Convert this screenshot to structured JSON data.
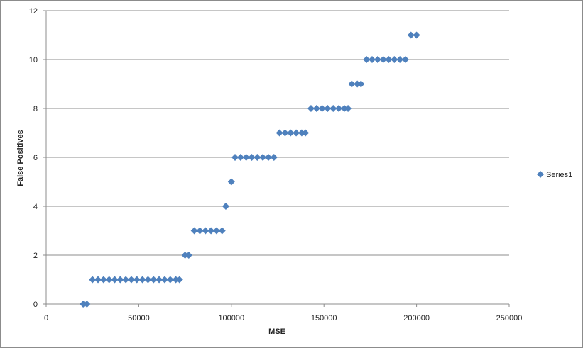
{
  "chart_data": {
    "type": "scatter",
    "title": "",
    "xlabel": "MSE",
    "ylabel": "False Positives",
    "xlim": [
      0,
      250000
    ],
    "ylim": [
      0,
      12
    ],
    "xticks": [
      "0",
      "50000",
      "100000",
      "150000",
      "200000",
      "250000"
    ],
    "yticks": [
      "0",
      "2",
      "4",
      "6",
      "8",
      "10",
      "12"
    ],
    "grid": "horizontal",
    "legend": "right",
    "marker": "diamond",
    "color": "#4f81bd",
    "series": [
      {
        "name": "Series1",
        "points": [
          [
            20000,
            0
          ],
          [
            22000,
            0
          ],
          [
            25000,
            1
          ],
          [
            28000,
            1
          ],
          [
            31000,
            1
          ],
          [
            34000,
            1
          ],
          [
            37000,
            1
          ],
          [
            40000,
            1
          ],
          [
            43000,
            1
          ],
          [
            46000,
            1
          ],
          [
            49000,
            1
          ],
          [
            52000,
            1
          ],
          [
            55000,
            1
          ],
          [
            58000,
            1
          ],
          [
            61000,
            1
          ],
          [
            64000,
            1
          ],
          [
            67000,
            1
          ],
          [
            70000,
            1
          ],
          [
            72000,
            1
          ],
          [
            75000,
            2
          ],
          [
            77000,
            2
          ],
          [
            80000,
            3
          ],
          [
            83000,
            3
          ],
          [
            86000,
            3
          ],
          [
            89000,
            3
          ],
          [
            92000,
            3
          ],
          [
            95000,
            3
          ],
          [
            97000,
            4
          ],
          [
            100000,
            5
          ],
          [
            102000,
            6
          ],
          [
            105000,
            6
          ],
          [
            108000,
            6
          ],
          [
            111000,
            6
          ],
          [
            114000,
            6
          ],
          [
            117000,
            6
          ],
          [
            120000,
            6
          ],
          [
            123000,
            6
          ],
          [
            126000,
            7
          ],
          [
            129000,
            7
          ],
          [
            132000,
            7
          ],
          [
            135000,
            7
          ],
          [
            138000,
            7
          ],
          [
            140000,
            7
          ],
          [
            143000,
            8
          ],
          [
            146000,
            8
          ],
          [
            149000,
            8
          ],
          [
            152000,
            8
          ],
          [
            155000,
            8
          ],
          [
            158000,
            8
          ],
          [
            161000,
            8
          ],
          [
            163000,
            8
          ],
          [
            165000,
            9
          ],
          [
            168000,
            9
          ],
          [
            170000,
            9
          ],
          [
            173000,
            10
          ],
          [
            176000,
            10
          ],
          [
            179000,
            10
          ],
          [
            182000,
            10
          ],
          [
            185000,
            10
          ],
          [
            188000,
            10
          ],
          [
            191000,
            10
          ],
          [
            194000,
            10
          ],
          [
            197000,
            11
          ],
          [
            200000,
            11
          ]
        ]
      }
    ]
  }
}
